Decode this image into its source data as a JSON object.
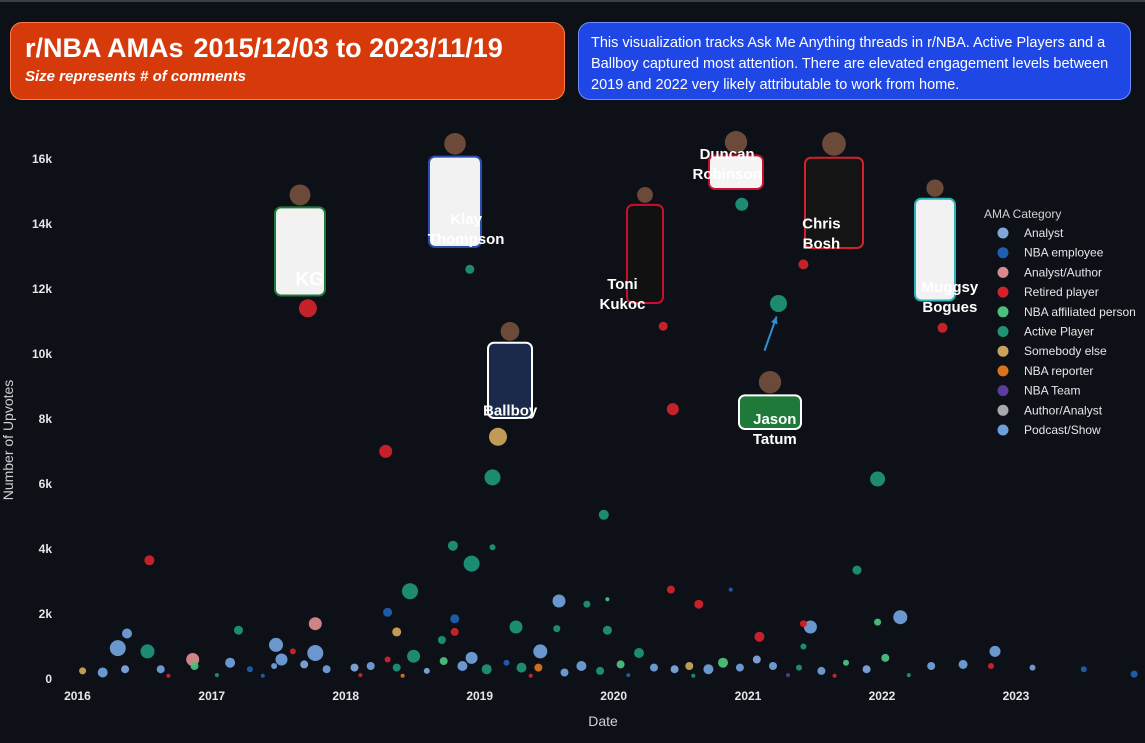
{
  "header": {
    "title": "r/NBA AMAs",
    "title_dates": "2015/12/03 to 2023/11/19",
    "subtitle": "Size represents # of comments",
    "description": "This visualization tracks Ask Me Anything threads in r/NBA. Active Players and a Ballboy captured most attention. There are elevated engagement levels between 2019 and 2022 very likely attributable to work from home."
  },
  "colors": {
    "background": "#0d1117",
    "title_box": "#d63a0b",
    "description_box": "#1f47e6"
  },
  "chart_data": {
    "type": "scatter",
    "xlabel": "Date",
    "ylabel": "Number of Upvotes",
    "x_ticks": [
      "2016",
      "2017",
      "2018",
      "2019",
      "2020",
      "2021",
      "2022",
      "2023"
    ],
    "y_ticks": [
      {
        "value": 0,
        "label": "0"
      },
      {
        "value": 2000,
        "label": "2k"
      },
      {
        "value": 4000,
        "label": "4k"
      },
      {
        "value": 6000,
        "label": "6k"
      },
      {
        "value": 8000,
        "label": "8k"
      },
      {
        "value": 10000,
        "label": "10k"
      },
      {
        "value": 12000,
        "label": "12k"
      },
      {
        "value": 14000,
        "label": "14k"
      },
      {
        "value": 16000,
        "label": "16k"
      }
    ],
    "xlim": [
      "2015-11-20",
      "2023-12-05"
    ],
    "ylim": [
      0,
      17500
    ],
    "size_encoding": "Number of comments",
    "legend_title": "AMA Category",
    "legend_position": "right",
    "categories": [
      {
        "name": "Analyst",
        "color": "#7fa7d8"
      },
      {
        "name": "NBA employee",
        "color": "#1f5fb0"
      },
      {
        "name": "Analyst/Author",
        "color": "#d98a8c"
      },
      {
        "name": "Retired player",
        "color": "#d0232b"
      },
      {
        "name": "NBA affiliated person",
        "color": "#4cc07a"
      },
      {
        "name": "Active Player",
        "color": "#1f9277"
      },
      {
        "name": "Somebody else",
        "color": "#c9a35a"
      },
      {
        "name": "NBA reporter",
        "color": "#d9741e"
      },
      {
        "name": "NBA Team",
        "color": "#5b3b9b"
      },
      {
        "name": "Author/Analyst",
        "color": "#a9a9ad"
      },
      {
        "name": "Podcast/Show",
        "color": "#6f9fd8"
      }
    ],
    "points": [
      {
        "date": "2017-09-20",
        "upvotes": 11400,
        "category": "Retired player",
        "size": 9
      },
      {
        "date": "2016-07-15",
        "upvotes": 3650,
        "category": "Retired player",
        "size": 5
      },
      {
        "date": "2018-04-20",
        "upvotes": 7000,
        "category": "Retired player",
        "size": 6.5
      },
      {
        "date": "2018-12-05",
        "upvotes": 12600,
        "category": "Active Player",
        "size": 4.5
      },
      {
        "date": "2019-02-20",
        "upvotes": 7450,
        "category": "Somebody else",
        "size": 9
      },
      {
        "date": "2019-02-05",
        "upvotes": 6200,
        "category": "Active Player",
        "size": 8
      },
      {
        "date": "2018-12-10",
        "upvotes": 3550,
        "category": "Active Player",
        "size": 8
      },
      {
        "date": "2018-10-20",
        "upvotes": 4100,
        "category": "Active Player",
        "size": 5
      },
      {
        "date": "2019-02-05",
        "upvotes": 4050,
        "category": "Active Player",
        "size": 3
      },
      {
        "date": "2018-06-25",
        "upvotes": 2700,
        "category": "Active Player",
        "size": 8
      },
      {
        "date": "2019-12-05",
        "upvotes": 5050,
        "category": "Active Player",
        "size": 5
      },
      {
        "date": "2020-05-15",
        "upvotes": 10850,
        "category": "Retired player",
        "size": 4.5
      },
      {
        "date": "2020-06-10",
        "upvotes": 8300,
        "category": "Retired player",
        "size": 6
      },
      {
        "date": "2020-12-15",
        "upvotes": 14600,
        "category": "Active Player",
        "size": 6.5
      },
      {
        "date": "2021-03-25",
        "upvotes": 11550,
        "category": "Active Player",
        "size": 8.5
      },
      {
        "date": "2021-06-01",
        "upvotes": 12750,
        "category": "Retired player",
        "size": 5
      },
      {
        "date": "2022-06-15",
        "upvotes": 10800,
        "category": "Retired player",
        "size": 5
      },
      {
        "date": "2021-12-20",
        "upvotes": 6150,
        "category": "Active Player",
        "size": 7.5
      },
      {
        "date": "2021-10-25",
        "upvotes": 3350,
        "category": "Active Player",
        "size": 4.5
      },
      {
        "date": "2019-08-05",
        "upvotes": 2400,
        "category": "Podcast/Show",
        "size": 6.5
      },
      {
        "date": "2019-10-20",
        "upvotes": 2300,
        "category": "Active Player",
        "size": 3.5
      },
      {
        "date": "2019-04-10",
        "upvotes": 1600,
        "category": "Active Player",
        "size": 6.5
      },
      {
        "date": "2019-07-30",
        "upvotes": 1550,
        "category": "Active Player",
        "size": 3.5
      },
      {
        "date": "2019-12-15",
        "upvotes": 2450,
        "category": "NBA affiliated person",
        "size": 2
      },
      {
        "date": "2020-06-05",
        "upvotes": 2750,
        "category": "Retired player",
        "size": 4
      },
      {
        "date": "2020-08-20",
        "upvotes": 2300,
        "category": "Retired player",
        "size": 4.5
      },
      {
        "date": "2020-11-15",
        "upvotes": 2750,
        "category": "NBA employee",
        "size": 2
      },
      {
        "date": "2021-06-20",
        "upvotes": 1600,
        "category": "Podcast/Show",
        "size": 6.5
      },
      {
        "date": "2021-06-01",
        "upvotes": 1700,
        "category": "Retired player",
        "size": 3.5
      },
      {
        "date": "2022-02-20",
        "upvotes": 1900,
        "category": "Podcast/Show",
        "size": 7
      },
      {
        "date": "2021-12-20",
        "upvotes": 1750,
        "category": "NBA affiliated person",
        "size": 3.5
      },
      {
        "date": "2021-02-01",
        "upvotes": 1300,
        "category": "Retired player",
        "size": 5
      },
      {
        "date": "2021-06-01",
        "upvotes": 1000,
        "category": "Active Player",
        "size": 3
      },
      {
        "date": "2017-10-10",
        "upvotes": 1700,
        "category": "Analyst/Author",
        "size": 6.5
      },
      {
        "date": "2017-10-10",
        "upvotes": 800,
        "category": "Podcast/Show",
        "size": 8
      },
      {
        "date": "2017-03-15",
        "upvotes": 1500,
        "category": "Active Player",
        "size": 4.5
      },
      {
        "date": "2016-05-15",
        "upvotes": 1400,
        "category": "Podcast/Show",
        "size": 5
      },
      {
        "date": "2016-07-10",
        "upvotes": 850,
        "category": "Active Player",
        "size": 7
      },
      {
        "date": "2016-04-20",
        "upvotes": 950,
        "category": "Podcast/Show",
        "size": 8
      },
      {
        "date": "2017-06-25",
        "upvotes": 1050,
        "category": "Podcast/Show",
        "size": 7
      },
      {
        "date": "2017-07-10",
        "upvotes": 600,
        "category": "Podcast/Show",
        "size": 6
      },
      {
        "date": "2017-08-10",
        "upvotes": 850,
        "category": "Retired player",
        "size": 3
      },
      {
        "date": "2016-11-10",
        "upvotes": 600,
        "category": "Analyst/Author",
        "size": 6.5
      },
      {
        "date": "2018-04-25",
        "upvotes": 2050,
        "category": "NBA employee",
        "size": 4.5
      },
      {
        "date": "2018-05-20",
        "upvotes": 1450,
        "category": "Somebody else",
        "size": 4.5
      },
      {
        "date": "2018-10-25",
        "upvotes": 1850,
        "category": "NBA employee",
        "size": 4.5
      },
      {
        "date": "2018-10-25",
        "upvotes": 1450,
        "category": "Retired player",
        "size": 4
      },
      {
        "date": "2018-09-20",
        "upvotes": 1200,
        "category": "Active Player",
        "size": 4
      },
      {
        "date": "2018-07-05",
        "upvotes": 700,
        "category": "Active Player",
        "size": 6.5
      },
      {
        "date": "2019-12-15",
        "upvotes": 1500,
        "category": "Active Player",
        "size": 4.5
      },
      {
        "date": "2018-12-10",
        "upvotes": 650,
        "category": "Podcast/Show",
        "size": 6
      },
      {
        "date": "2019-06-15",
        "upvotes": 850,
        "category": "Podcast/Show",
        "size": 7
      },
      {
        "date": "2016-01-15",
        "upvotes": 250,
        "category": "Somebody else",
        "size": 3.5
      },
      {
        "date": "2016-03-10",
        "upvotes": 200,
        "category": "Podcast/Show",
        "size": 5
      },
      {
        "date": "2016-05-10",
        "upvotes": 300,
        "category": "Analyst",
        "size": 4
      },
      {
        "date": "2016-08-15",
        "upvotes": 300,
        "category": "Podcast/Show",
        "size": 4
      },
      {
        "date": "2016-11-15",
        "upvotes": 400,
        "category": "NBA affiliated person",
        "size": 4
      },
      {
        "date": "2017-02-20",
        "upvotes": 500,
        "category": "Podcast/Show",
        "size": 5
      },
      {
        "date": "2017-04-15",
        "upvotes": 300,
        "category": "NBA employee",
        "size": 3
      },
      {
        "date": "2017-06-20",
        "upvotes": 400,
        "category": "Podcast/Show",
        "size": 3
      },
      {
        "date": "2017-09-10",
        "upvotes": 450,
        "category": "Analyst",
        "size": 4
      },
      {
        "date": "2017-11-10",
        "upvotes": 300,
        "category": "Podcast/Show",
        "size": 4
      },
      {
        "date": "2018-01-25",
        "upvotes": 350,
        "category": "Analyst",
        "size": 4
      },
      {
        "date": "2018-03-10",
        "upvotes": 400,
        "category": "Podcast/Show",
        "size": 4
      },
      {
        "date": "2018-04-25",
        "upvotes": 600,
        "category": "Retired player",
        "size": 3
      },
      {
        "date": "2018-05-20",
        "upvotes": 350,
        "category": "Active Player",
        "size": 4
      },
      {
        "date": "2018-08-10",
        "upvotes": 250,
        "category": "Analyst",
        "size": 3
      },
      {
        "date": "2018-09-25",
        "upvotes": 550,
        "category": "NBA affiliated person",
        "size": 4
      },
      {
        "date": "2018-11-15",
        "upvotes": 400,
        "category": "Podcast/Show",
        "size": 5
      },
      {
        "date": "2019-01-20",
        "upvotes": 300,
        "category": "Active Player",
        "size": 5
      },
      {
        "date": "2019-03-15",
        "upvotes": 500,
        "category": "NBA employee",
        "size": 3
      },
      {
        "date": "2019-04-25",
        "upvotes": 350,
        "category": "Active Player",
        "size": 5
      },
      {
        "date": "2019-06-10",
        "upvotes": 350,
        "category": "NBA reporter",
        "size": 4
      },
      {
        "date": "2019-08-20",
        "upvotes": 200,
        "category": "Podcast/Show",
        "size": 4
      },
      {
        "date": "2019-10-05",
        "upvotes": 400,
        "category": "Podcast/Show",
        "size": 5
      },
      {
        "date": "2019-11-25",
        "upvotes": 250,
        "category": "Active Player",
        "size": 4
      },
      {
        "date": "2020-01-20",
        "upvotes": 450,
        "category": "NBA affiliated person",
        "size": 4
      },
      {
        "date": "2020-03-10",
        "upvotes": 800,
        "category": "Active Player",
        "size": 5
      },
      {
        "date": "2020-04-20",
        "upvotes": 350,
        "category": "Podcast/Show",
        "size": 4
      },
      {
        "date": "2020-06-15",
        "upvotes": 300,
        "category": "Analyst",
        "size": 4
      },
      {
        "date": "2020-07-25",
        "upvotes": 400,
        "category": "Somebody else",
        "size": 4
      },
      {
        "date": "2020-09-15",
        "upvotes": 300,
        "category": "Podcast/Show",
        "size": 5
      },
      {
        "date": "2020-10-25",
        "upvotes": 500,
        "category": "NBA affiliated person",
        "size": 5
      },
      {
        "date": "2020-12-10",
        "upvotes": 350,
        "category": "Podcast/Show",
        "size": 4
      },
      {
        "date": "2021-01-25",
        "upvotes": 600,
        "category": "Analyst",
        "size": 4
      },
      {
        "date": "2021-03-10",
        "upvotes": 400,
        "category": "Podcast/Show",
        "size": 4
      },
      {
        "date": "2021-05-20",
        "upvotes": 350,
        "category": "Active Player",
        "size": 3
      },
      {
        "date": "2021-07-20",
        "upvotes": 250,
        "category": "Podcast/Show",
        "size": 4
      },
      {
        "date": "2021-09-25",
        "upvotes": 500,
        "category": "NBA affiliated person",
        "size": 3
      },
      {
        "date": "2021-11-20",
        "upvotes": 300,
        "category": "Analyst",
        "size": 4
      },
      {
        "date": "2022-01-10",
        "upvotes": 650,
        "category": "NBA affiliated person",
        "size": 4
      },
      {
        "date": "2022-05-15",
        "upvotes": 400,
        "category": "Podcast/Show",
        "size": 4
      },
      {
        "date": "2022-08-10",
        "upvotes": 450,
        "category": "Podcast/Show",
        "size": 4.5
      },
      {
        "date": "2022-11-05",
        "upvotes": 850,
        "category": "Podcast/Show",
        "size": 5.5
      },
      {
        "date": "2022-10-25",
        "upvotes": 400,
        "category": "Retired player",
        "size": 3
      },
      {
        "date": "2023-02-15",
        "upvotes": 350,
        "category": "Podcast/Show",
        "size": 3
      },
      {
        "date": "2023-07-05",
        "upvotes": 300,
        "category": "NBA employee",
        "size": 3
      },
      {
        "date": "2023-11-19",
        "upvotes": 150,
        "category": "NBA employee",
        "size": 3.5
      },
      {
        "date": "2016-09-05",
        "upvotes": 100,
        "category": "Retired player",
        "size": 2
      },
      {
        "date": "2017-01-15",
        "upvotes": 120,
        "category": "Active Player",
        "size": 2
      },
      {
        "date": "2017-05-20",
        "upvotes": 100,
        "category": "NBA employee",
        "size": 2
      },
      {
        "date": "2018-02-10",
        "upvotes": 120,
        "category": "Retired player",
        "size": 2
      },
      {
        "date": "2018-06-05",
        "upvotes": 100,
        "category": "NBA reporter",
        "size": 2
      },
      {
        "date": "2019-05-20",
        "upvotes": 100,
        "category": "Retired player",
        "size": 2
      },
      {
        "date": "2020-02-10",
        "upvotes": 120,
        "category": "NBA employee",
        "size": 2
      },
      {
        "date": "2020-08-05",
        "upvotes": 100,
        "category": "Active Player",
        "size": 2
      },
      {
        "date": "2021-04-20",
        "upvotes": 120,
        "category": "NBA Team",
        "size": 2
      },
      {
        "date": "2021-08-25",
        "upvotes": 100,
        "category": "Retired player",
        "size": 2
      },
      {
        "date": "2022-03-15",
        "upvotes": 120,
        "category": "Active Player",
        "size": 2
      }
    ],
    "annotations": [
      {
        "text": "KG",
        "date": "2017-09-25",
        "upvotes": 12100,
        "big": true
      },
      {
        "text": "Klay\nThompson",
        "date": "2018-11-25",
        "upvotes": 14000
      },
      {
        "text": "Ballboy",
        "date": "2019-03-25",
        "upvotes": 8100
      },
      {
        "text": "Toni\nKukoc",
        "date": "2020-01-25",
        "upvotes": 12000
      },
      {
        "text": "Duncan\nRobinson",
        "date": "2020-11-05",
        "upvotes": 16000
      },
      {
        "text": "Chris\nBosh",
        "date": "2021-07-20",
        "upvotes": 13850
      },
      {
        "text": "Jason\nTatum",
        "date": "2021-03-15",
        "upvotes": 7850
      },
      {
        "text": "Muggsy\nBogues",
        "date": "2022-07-05",
        "upvotes": 11900
      }
    ],
    "arrows": [
      {
        "from_date": "2021-02-15",
        "from_upvotes": 10100,
        "to_date": "2021-03-20",
        "to_upvotes": 11150
      }
    ]
  }
}
